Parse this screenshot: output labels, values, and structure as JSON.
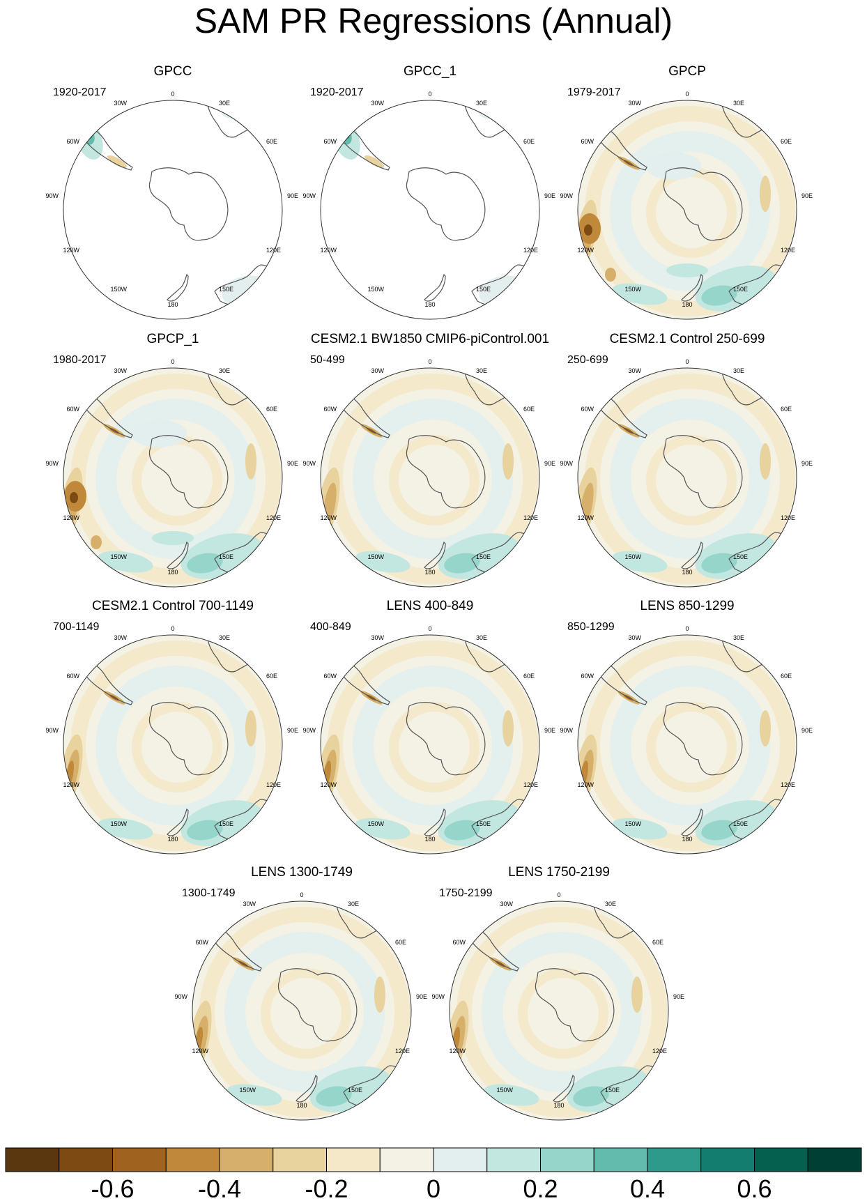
{
  "title": "SAM PR Regressions (Annual)",
  "map_labels": {
    "top": "0",
    "top_right": "30E",
    "right_upper": "60E",
    "right": "90E",
    "right_lower": "120E",
    "bottom_right": "150E",
    "bottom": "180",
    "bottom_left": "150W",
    "left_lower": "120W",
    "left": "90W",
    "left_upper": "60W",
    "top_left": "30W"
  },
  "colors": {
    "palette": [
      "#5b3710",
      "#7d4a14",
      "#a0631f",
      "#c0883a",
      "#d6b06a",
      "#e8d29e",
      "#f5e8c8",
      "#f4f1e5",
      "#e3efee",
      "#c2e6e0",
      "#95d5ca",
      "#63bbae",
      "#2e9a8b",
      "#137d70",
      "#06604f",
      "#003f33"
    ],
    "coast": "#555555",
    "border": "#333333"
  },
  "chart_data": {
    "type": "heatmap",
    "projection": "south-polar-stereographic",
    "panels": [
      {
        "title": "GPCC",
        "period": "1920-2017",
        "coverage": "land-only"
      },
      {
        "title": "GPCC_1",
        "period": "1920-2017",
        "coverage": "land-only"
      },
      {
        "title": "GPCP",
        "period": "1979-2017",
        "coverage": "global"
      },
      {
        "title": "GPCP_1",
        "period": "1980-2017",
        "coverage": "global"
      },
      {
        "title": "CESM2.1 BW1850 CMIP6-piControl.001",
        "period": "50-499",
        "coverage": "global"
      },
      {
        "title": "CESM2.1 Control 250-699",
        "period": "250-699",
        "coverage": "global"
      },
      {
        "title": "CESM2.1 Control 700-1149",
        "period": "700-1149",
        "coverage": "global"
      },
      {
        "title": "LENS 400-849",
        "period": "400-849",
        "coverage": "global"
      },
      {
        "title": "LENS 850-1299",
        "period": "850-1299",
        "coverage": "global"
      },
      {
        "title": "LENS 1300-1749",
        "period": "1300-1749",
        "coverage": "global"
      },
      {
        "title": "LENS 1750-2199",
        "period": "1750-2199",
        "coverage": "global"
      }
    ],
    "colorbar": {
      "levels": [
        -0.7,
        -0.6,
        -0.5,
        -0.4,
        -0.3,
        -0.2,
        -0.1,
        0,
        0.1,
        0.2,
        0.3,
        0.4,
        0.5,
        0.6,
        0.7
      ],
      "tick_labels": [
        "-0.6",
        "-0.4",
        "-0.2",
        "0",
        "0.2",
        "0.4",
        "0.6"
      ],
      "tick_values": [
        -0.6,
        -0.4,
        -0.2,
        0,
        0.2,
        0.4,
        0.6
      ]
    }
  }
}
